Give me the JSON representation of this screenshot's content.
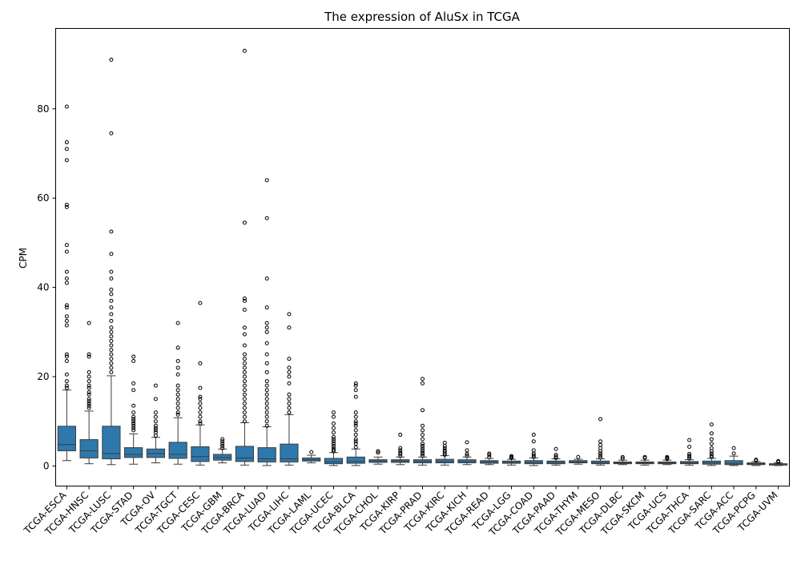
{
  "chart_data": {
    "type": "box",
    "title": "The expression of AluSx in TCGA",
    "xlabel": "",
    "ylabel": "CPM",
    "ylim": [
      -4.5,
      98
    ],
    "yticks": [
      0,
      20,
      40,
      60,
      80
    ],
    "box_color": "#2f78ad",
    "grid": false,
    "legend": "none",
    "categories": [
      "TCGA-ESCA",
      "TCGA-HNSC",
      "TCGA-LUSC",
      "TCGA-STAD",
      "TCGA-OV",
      "TCGA-TGCT",
      "TCGA-CESC",
      "TCGA-GBM",
      "TCGA-BRCA",
      "TCGA-LUAD",
      "TCGA-LIHC",
      "TCGA-LAML",
      "TCGA-UCEC",
      "TCGA-BLCA",
      "TCGA-CHOL",
      "TCGA-KIRP",
      "TCGA-PRAD",
      "TCGA-KIRC",
      "TCGA-KICH",
      "TCGA-READ",
      "TCGA-LGG",
      "TCGA-COAD",
      "TCGA-PAAD",
      "TCGA-THYM",
      "TCGA-MESO",
      "TCGA-DLBC",
      "TCGA-SKCM",
      "TCGA-UCS",
      "TCGA-THCA",
      "TCGA-SARC",
      "TCGA-ACC",
      "TCGA-PCPG",
      "TCGA-UVM"
    ],
    "boxes": [
      {
        "whislo": 1.2,
        "q1": 3.4,
        "med": 4.8,
        "q3": 8.9,
        "whishi": 17.0,
        "fliers": [
          17.5,
          18.0,
          19.0,
          20.5,
          23.5,
          24.5,
          25.0,
          31.5,
          32.5,
          33.5,
          35.5,
          36.0,
          41.0,
          42.0,
          43.5,
          48.0,
          49.5,
          58.0,
          58.5,
          68.5,
          71.0,
          72.5,
          80.5
        ]
      },
      {
        "whislo": 0.5,
        "q1": 1.8,
        "med": 3.4,
        "q3": 5.9,
        "whishi": 12.3,
        "fliers": [
          13.0,
          13.5,
          14.0,
          14.5,
          15.0,
          16.0,
          16.5,
          17.5,
          18.0,
          19.0,
          20.0,
          21.0,
          24.5,
          25.0,
          32.0
        ]
      },
      {
        "whislo": 0.3,
        "q1": 1.6,
        "med": 2.8,
        "q3": 8.9,
        "whishi": 20.2,
        "fliers": [
          21.0,
          22.0,
          23.0,
          24.0,
          25.0,
          26.0,
          27.0,
          28.0,
          29.0,
          30.0,
          31.0,
          32.5,
          34.0,
          35.5,
          37.0,
          38.5,
          39.5,
          42.0,
          43.5,
          47.5,
          52.5,
          74.5,
          91.0
        ]
      },
      {
        "whislo": 0.4,
        "q1": 1.9,
        "med": 2.6,
        "q3": 4.1,
        "whishi": 7.2,
        "fliers": [
          8.0,
          8.5,
          9.0,
          9.5,
          10.0,
          10.5,
          11.0,
          12.0,
          13.5,
          17.0,
          18.5,
          23.5,
          24.5
        ]
      },
      {
        "whislo": 0.7,
        "q1": 1.9,
        "med": 2.8,
        "q3": 3.8,
        "whishi": 6.4,
        "fliers": [
          6.8,
          7.5,
          8.0,
          8.5,
          9.0,
          10.0,
          11.0,
          12.0,
          15.0,
          18.0
        ]
      },
      {
        "whislo": 0.4,
        "q1": 1.7,
        "med": 2.6,
        "q3": 5.3,
        "whishi": 10.8,
        "fliers": [
          11.5,
          12.0,
          13.0,
          14.0,
          15.0,
          16.0,
          17.0,
          18.0,
          20.5,
          22.0,
          23.5,
          26.5,
          32.0
        ]
      },
      {
        "whislo": 0.2,
        "q1": 1.0,
        "med": 2.1,
        "q3": 4.3,
        "whishi": 9.2,
        "fliers": [
          9.5,
          10.0,
          11.0,
          12.0,
          13.0,
          14.0,
          15.0,
          15.5,
          17.5,
          23.0,
          36.5
        ]
      },
      {
        "whislo": 0.7,
        "q1": 1.3,
        "med": 1.9,
        "q3": 2.6,
        "whishi": 3.8,
        "fliers": [
          4.0,
          4.5,
          5.0,
          5.5,
          6.0
        ]
      },
      {
        "whislo": 0.2,
        "q1": 1.0,
        "med": 1.8,
        "q3": 4.4,
        "whishi": 9.7,
        "fliers": [
          10.0,
          11.0,
          12.0,
          13.0,
          14.0,
          15.0,
          16.0,
          17.0,
          18.0,
          19.0,
          20.0,
          21.0,
          22.0,
          23.0,
          24.0,
          25.0,
          27.0,
          29.5,
          31.0,
          35.0,
          37.0,
          37.5,
          54.5,
          93.0
        ]
      },
      {
        "whislo": 0.1,
        "q1": 0.9,
        "med": 1.6,
        "q3": 4.1,
        "whishi": 8.8,
        "fliers": [
          9.0,
          10.0,
          11.0,
          12.0,
          13.0,
          14.0,
          15.0,
          16.0,
          17.0,
          18.0,
          19.0,
          21.0,
          23.0,
          25.0,
          27.5,
          30.0,
          31.0,
          32.0,
          35.5,
          42.0,
          55.5,
          64.0
        ]
      },
      {
        "whislo": 0.2,
        "q1": 0.9,
        "med": 1.6,
        "q3": 4.9,
        "whishi": 11.5,
        "fliers": [
          12.0,
          13.0,
          14.0,
          15.0,
          16.0,
          18.5,
          20.0,
          21.0,
          22.0,
          24.0,
          31.0,
          34.0
        ]
      },
      {
        "whislo": 0.7,
        "q1": 1.1,
        "med": 1.4,
        "q3": 1.8,
        "whishi": 2.4,
        "fliers": [
          3.1
        ]
      },
      {
        "whislo": 0.1,
        "q1": 0.5,
        "med": 0.9,
        "q3": 1.7,
        "whishi": 3.0,
        "fliers": [
          3.3,
          3.6,
          4.0,
          4.5,
          5.0,
          5.5,
          6.0,
          6.5,
          7.5,
          8.5,
          9.5,
          11.0,
          12.0
        ]
      },
      {
        "whislo": 0.1,
        "q1": 0.6,
        "med": 1.0,
        "q3": 2.0,
        "whishi": 3.8,
        "fliers": [
          4.2,
          5.0,
          5.5,
          6.0,
          7.0,
          8.0,
          9.0,
          9.5,
          10.0,
          11.0,
          12.0,
          15.5,
          17.0,
          18.0,
          18.5
        ]
      },
      {
        "whislo": 0.4,
        "q1": 0.8,
        "med": 1.1,
        "q3": 1.4,
        "whishi": 2.0,
        "fliers": [
          3.0,
          3.3
        ]
      },
      {
        "whislo": 0.3,
        "q1": 0.8,
        "med": 1.1,
        "q3": 1.4,
        "whishi": 2.0,
        "fliers": [
          2.3,
          2.7,
          3.0,
          3.5,
          4.0,
          7.0
        ]
      },
      {
        "whislo": 0.2,
        "q1": 0.7,
        "med": 1.0,
        "q3": 1.4,
        "whishi": 2.0,
        "fliers": [
          2.3,
          2.7,
          3.0,
          3.5,
          4.0,
          4.5,
          5.0,
          6.0,
          7.0,
          8.0,
          9.0,
          12.5,
          18.5,
          19.5
        ]
      },
      {
        "whislo": 0.2,
        "q1": 0.7,
        "med": 1.0,
        "q3": 1.5,
        "whishi": 2.3,
        "fliers": [
          2.5,
          2.8,
          3.2,
          3.5,
          4.0,
          4.5,
          5.2
        ]
      },
      {
        "whislo": 0.3,
        "q1": 0.7,
        "med": 1.0,
        "q3": 1.4,
        "whishi": 2.0,
        "fliers": [
          2.3,
          2.7,
          3.5,
          5.3
        ]
      },
      {
        "whislo": 0.3,
        "q1": 0.6,
        "med": 0.9,
        "q3": 1.2,
        "whishi": 1.7,
        "fliers": [
          2.0,
          2.5,
          2.8
        ]
      },
      {
        "whislo": 0.2,
        "q1": 0.6,
        "med": 0.8,
        "q3": 1.1,
        "whishi": 1.5,
        "fliers": [
          1.8,
          2.0,
          2.2
        ]
      },
      {
        "whislo": 0.1,
        "q1": 0.5,
        "med": 0.8,
        "q3": 1.2,
        "whishi": 1.8,
        "fliers": [
          2.0,
          2.4,
          2.8,
          3.5,
          5.5,
          7.0
        ]
      },
      {
        "whislo": 0.2,
        "q1": 0.5,
        "med": 0.8,
        "q3": 1.1,
        "whishi": 1.6,
        "fliers": [
          1.8,
          2.1,
          2.5,
          3.8
        ]
      },
      {
        "whislo": 0.4,
        "q1": 0.7,
        "med": 0.9,
        "q3": 1.2,
        "whishi": 1.5,
        "fliers": [
          2.0
        ]
      },
      {
        "whislo": 0.2,
        "q1": 0.5,
        "med": 0.8,
        "q3": 1.1,
        "whishi": 1.6,
        "fliers": [
          1.9,
          2.3,
          2.8,
          3.3,
          4.0,
          4.7,
          5.5,
          10.5
        ]
      },
      {
        "whislo": 0.3,
        "q1": 0.5,
        "med": 0.7,
        "q3": 0.9,
        "whishi": 1.3,
        "fliers": [
          1.7,
          2.0
        ]
      },
      {
        "whislo": 0.2,
        "q1": 0.5,
        "med": 0.7,
        "q3": 0.9,
        "whishi": 1.3,
        "fliers": [
          1.8,
          2.0
        ]
      },
      {
        "whislo": 0.3,
        "q1": 0.5,
        "med": 0.7,
        "q3": 0.9,
        "whishi": 1.3,
        "fliers": [
          1.6,
          1.8,
          2.0
        ]
      },
      {
        "whislo": 0.2,
        "q1": 0.5,
        "med": 0.7,
        "q3": 1.0,
        "whishi": 1.4,
        "fliers": [
          1.7,
          2.0,
          2.3,
          2.7,
          4.3,
          5.8
        ]
      },
      {
        "whislo": 0.1,
        "q1": 0.4,
        "med": 0.7,
        "q3": 1.1,
        "whishi": 1.7,
        "fliers": [
          2.0,
          2.3,
          2.8,
          3.3,
          4.0,
          5.0,
          6.0,
          7.3,
          9.3
        ]
      },
      {
        "whislo": 0.1,
        "q1": 0.3,
        "med": 0.6,
        "q3": 1.2,
        "whishi": 2.2,
        "fliers": [
          2.8,
          4.0
        ]
      },
      {
        "whislo": 0.1,
        "q1": 0.3,
        "med": 0.5,
        "q3": 0.7,
        "whishi": 1.0,
        "fliers": [
          1.2,
          1.4
        ]
      },
      {
        "whislo": 0.1,
        "q1": 0.2,
        "med": 0.3,
        "q3": 0.5,
        "whishi": 0.7,
        "fliers": [
          0.9,
          1.1
        ]
      }
    ]
  }
}
